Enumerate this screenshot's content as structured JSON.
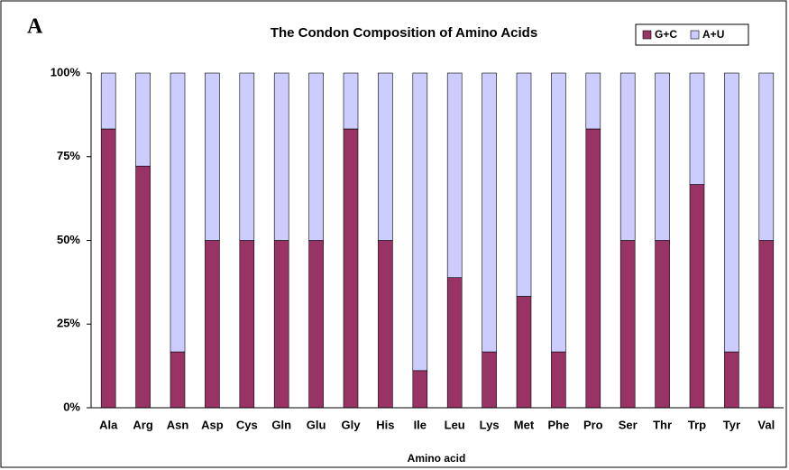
{
  "chart_data": {
    "type": "stacked_bar",
    "panel_label": "A",
    "title": "The Condon Composition of Amino Acids",
    "x_label": "Amino acid",
    "categories": [
      "Ala",
      "Arg",
      "Asn",
      "Asp",
      "Cys",
      "Gln",
      "Glu",
      "Gly",
      "His",
      "Ile",
      "Leu",
      "Lys",
      "Met",
      "Phe",
      "Pro",
      "Ser",
      "Thr",
      "Trp",
      "Tyr",
      "Val"
    ],
    "series": [
      {
        "name": "G+C",
        "color": "#993366",
        "values": [
          83.3,
          72.2,
          16.7,
          50,
          50,
          50,
          50,
          83.3,
          50,
          11.1,
          38.9,
          16.7,
          33.3,
          16.7,
          83.3,
          50,
          50,
          66.7,
          16.7,
          50
        ]
      },
      {
        "name": "A+U",
        "color": "#ccccff",
        "values": [
          16.7,
          27.8,
          83.3,
          50,
          50,
          50,
          50,
          16.7,
          50,
          88.9,
          61.1,
          83.3,
          66.7,
          83.3,
          16.7,
          50,
          50,
          33.3,
          83.3,
          50
        ]
      }
    ],
    "ylim": [
      0,
      100
    ],
    "yticks": [
      {
        "value": 0,
        "label": "0%"
      },
      {
        "value": 25,
        "label": "25%"
      },
      {
        "value": 50,
        "label": "50%"
      },
      {
        "value": 75,
        "label": "75%"
      },
      {
        "value": 100,
        "label": "100%"
      }
    ],
    "grid": false,
    "legend": "top-right"
  }
}
